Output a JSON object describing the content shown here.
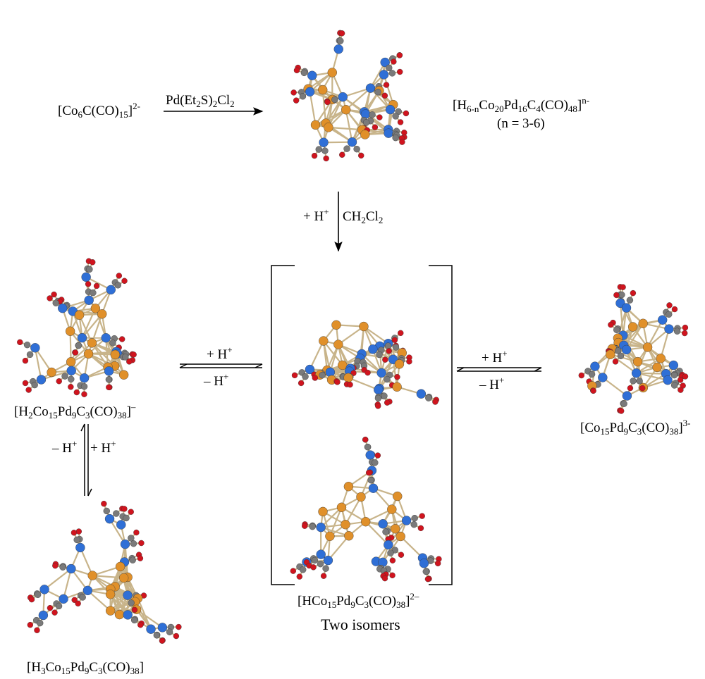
{
  "labels": {
    "start": {
      "p1": "[Co",
      "s1": "6",
      "p2": "C(CO)",
      "s2": "15",
      "p3": "]",
      "sup": "2-"
    },
    "reagent1": {
      "p1": "Pd(Et",
      "s1": "2",
      "p2": "S)",
      "s2": "2",
      "p3": "Cl",
      "s3": "2"
    },
    "top_product": {
      "p1": "[H",
      "s1": "6-n",
      "p2": "Co",
      "s2": "20",
      "p3": "Pd",
      "s3": "16",
      "p4": "C",
      "s4": "4",
      "p5": "(CO)",
      "s5": "48",
      "p6": "]",
      "sup": "n-"
    },
    "top_product_n": "(n = 3-6)",
    "down_step": {
      "p1": "+ H",
      "sup": "+",
      "p2": "CH",
      "s2": "2",
      "p3": "Cl",
      "s3": "2"
    },
    "left_eq": {
      "plus": "+ H",
      "plus_sup": "+",
      "minus": "– H",
      "minus_sup": "+"
    },
    "right_eq": {
      "plus": "+ H",
      "plus_sup": "+",
      "minus": "– H",
      "minus_sup": "+"
    },
    "vert_eq": {
      "minus": "– H",
      "minus_sup": "+",
      "plus": "+ H",
      "plus_sup": "+"
    },
    "left_mid": {
      "p1": "[H",
      "s1": "2",
      "p2": "Co",
      "s2": "15",
      "p3": "Pd",
      "s3": "9",
      "p4": "C",
      "s4": "3",
      "p5": "(CO)",
      "s5": "38",
      "p6": "]",
      "sup": "–"
    },
    "left_bottom": {
      "p1": "[H",
      "s1": "3",
      "p2": "Co",
      "s2": "15",
      "p3": "Pd",
      "s3": "9",
      "p4": "C",
      "s4": "3",
      "p5": "(CO)",
      "s5": "38",
      "p6": "]"
    },
    "center": {
      "p1": "[HCo",
      "s1": "15",
      "p2": "Pd",
      "s2": "9",
      "p3": "C",
      "s3": "3",
      "p4": "(CO)",
      "s4": "38",
      "p5": "]",
      "sup": "2–"
    },
    "center_caption": "Two isomers",
    "right": {
      "p1": "[Co",
      "s1": "15",
      "p2": "Pd",
      "s2": "9",
      "p3": "C",
      "s3": "3",
      "p4": "(CO)",
      "s4": "38",
      "p5": "]",
      "sup": "3-"
    }
  },
  "colors": {
    "cobalt": "#2f6fd6",
    "palladium": "#e0902a",
    "carbon": "#7a7a7a",
    "oxygen": "#d0141e",
    "bond": "#c8b48a"
  }
}
